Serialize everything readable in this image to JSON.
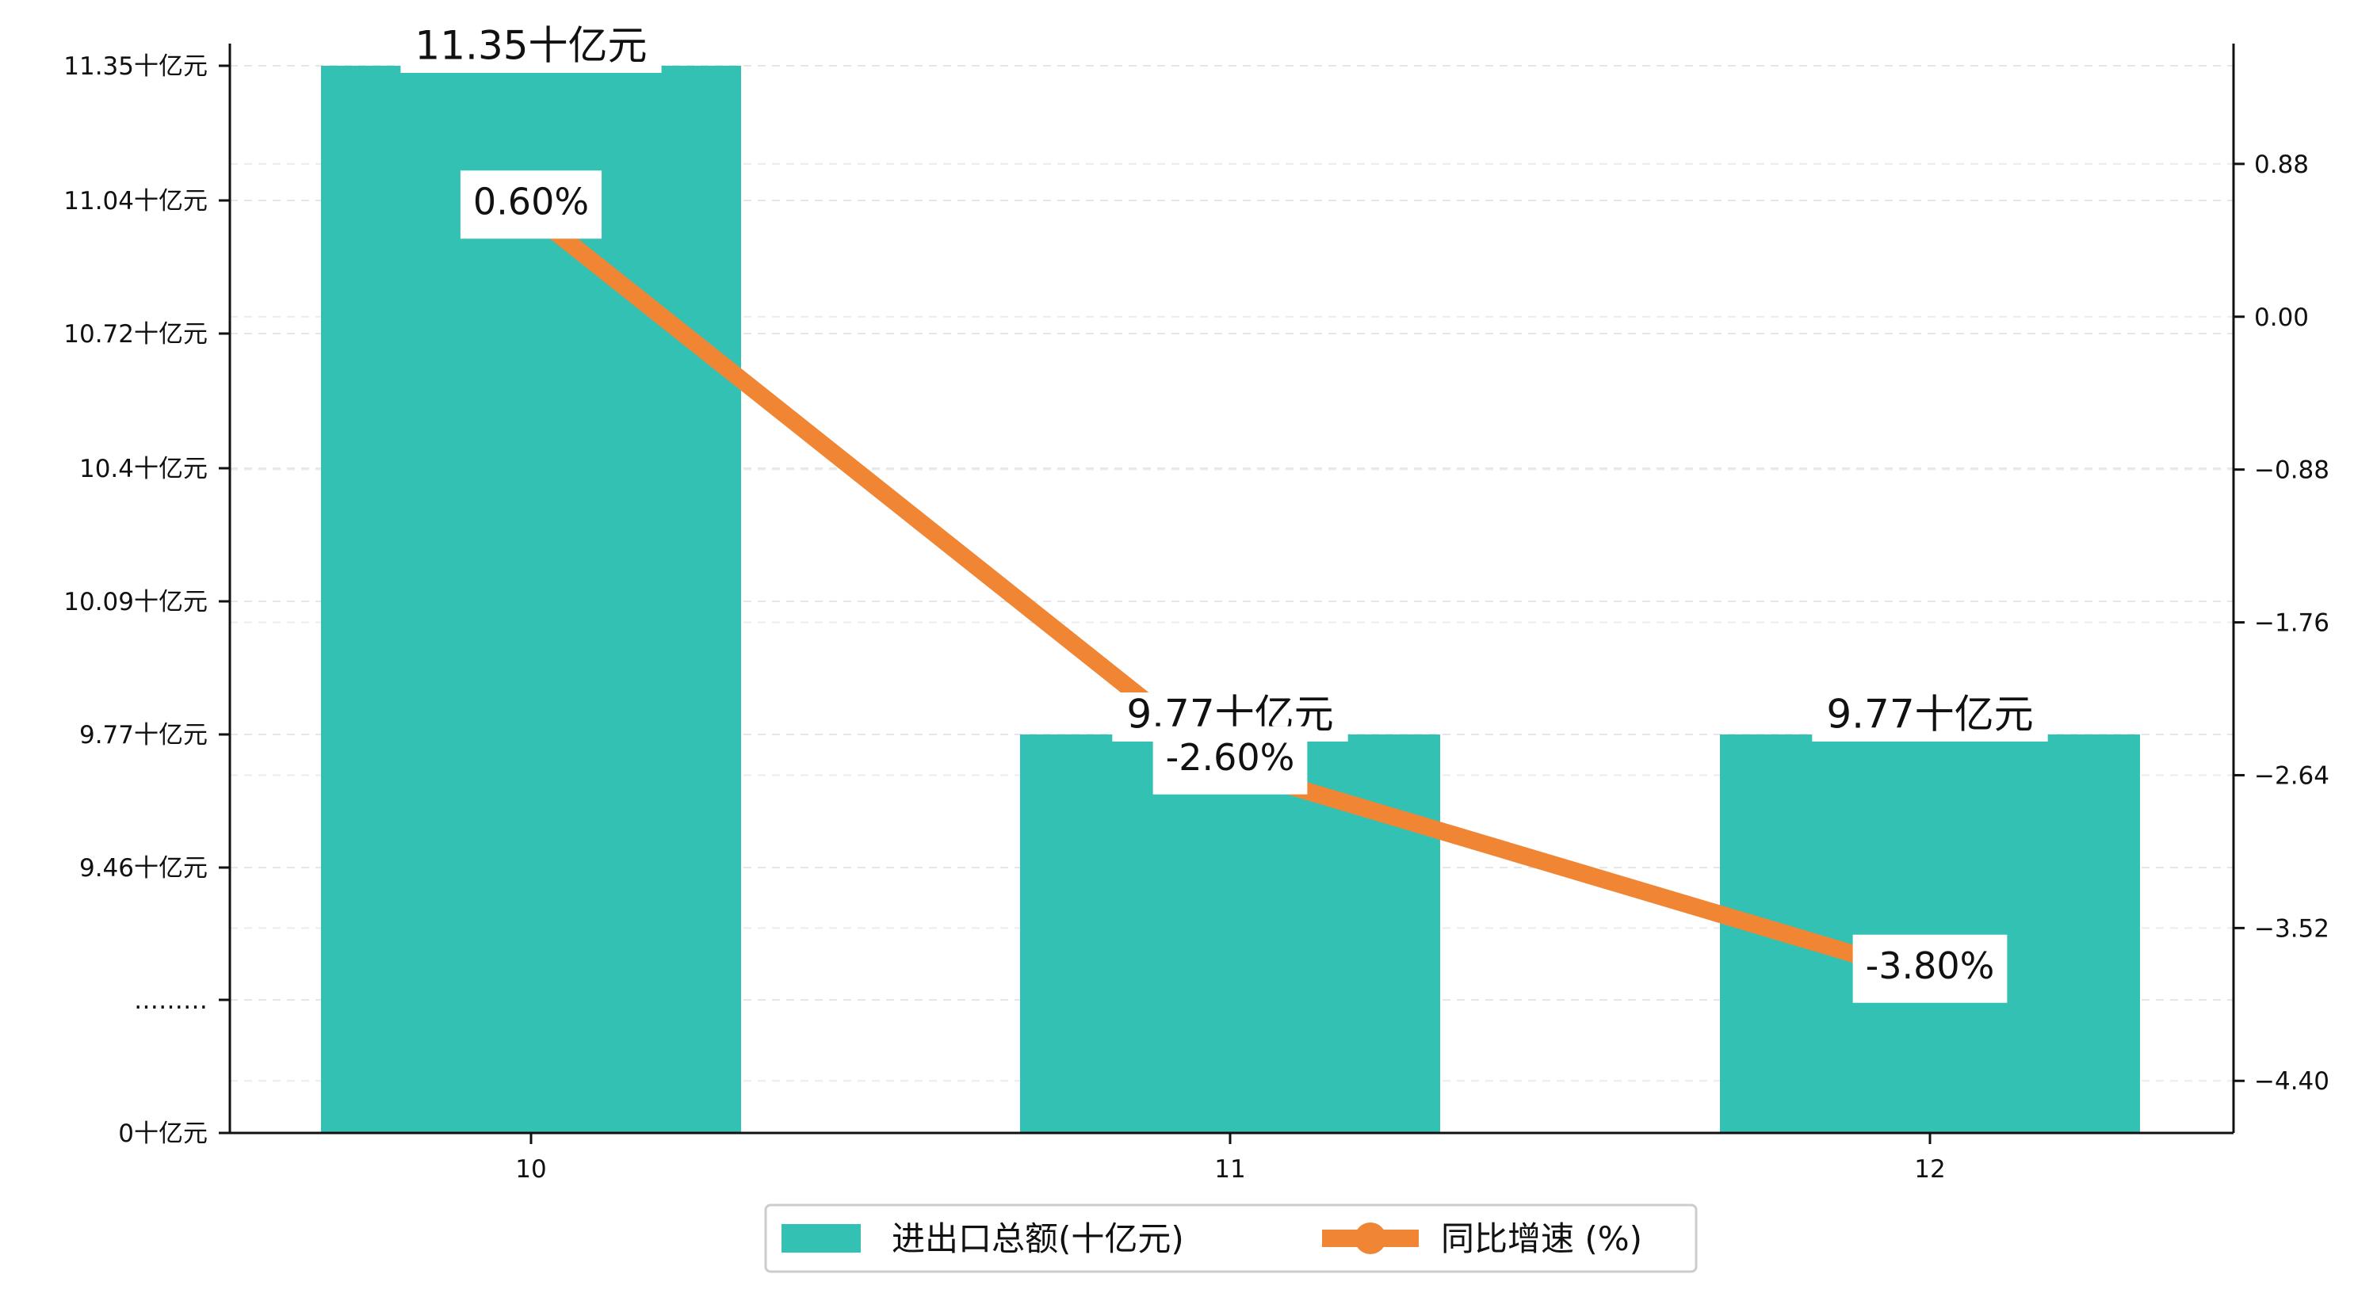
{
  "chart_data": {
    "type": "bar",
    "categories": [
      "10",
      "11",
      "12"
    ],
    "series": [
      {
        "name": "进出口总额(十亿元)",
        "type": "bar",
        "axis": "left",
        "values": [
          11.35,
          9.77,
          9.77
        ],
        "labels": [
          "11.35十亿元",
          "9.77十亿元",
          "9.77十亿元"
        ],
        "color": "#33C1B4"
      },
      {
        "name": "同比增速 (%)",
        "type": "line",
        "axis": "right",
        "values": [
          0.6,
          -2.6,
          -3.8
        ],
        "labels": [
          "0.60%",
          "-2.60%",
          "-3.80%"
        ],
        "color": "#F08634"
      }
    ],
    "left_axis": {
      "broken": true,
      "ticks": [
        {
          "value": 0,
          "label": "0十亿元"
        },
        {
          "value": null,
          "label": "………"
        },
        {
          "value": 9.46,
          "label": "9.46十亿元"
        },
        {
          "value": 9.77,
          "label": "9.77十亿元"
        },
        {
          "value": 10.09,
          "label": "10.09十亿元"
        },
        {
          "value": 10.4,
          "label": "10.4十亿元"
        },
        {
          "value": 10.72,
          "label": "10.72十亿元"
        },
        {
          "value": 11.04,
          "label": "11.04十亿元"
        },
        {
          "value": 11.35,
          "label": "11.35十亿元"
        }
      ]
    },
    "right_axis": {
      "ylim": [
        -4.7,
        1.55
      ],
      "ticks": [
        {
          "value": 0.88,
          "label": "0.88"
        },
        {
          "value": 0.0,
          "label": "0.00"
        },
        {
          "value": -0.88,
          "label": "−0.88"
        },
        {
          "value": -1.76,
          "label": "−1.76"
        },
        {
          "value": -2.64,
          "label": "−2.64"
        },
        {
          "value": -3.52,
          "label": "−3.52"
        },
        {
          "value": -4.4,
          "label": "−4.40"
        }
      ]
    },
    "grid": true,
    "legend_position": "bottom-center"
  }
}
